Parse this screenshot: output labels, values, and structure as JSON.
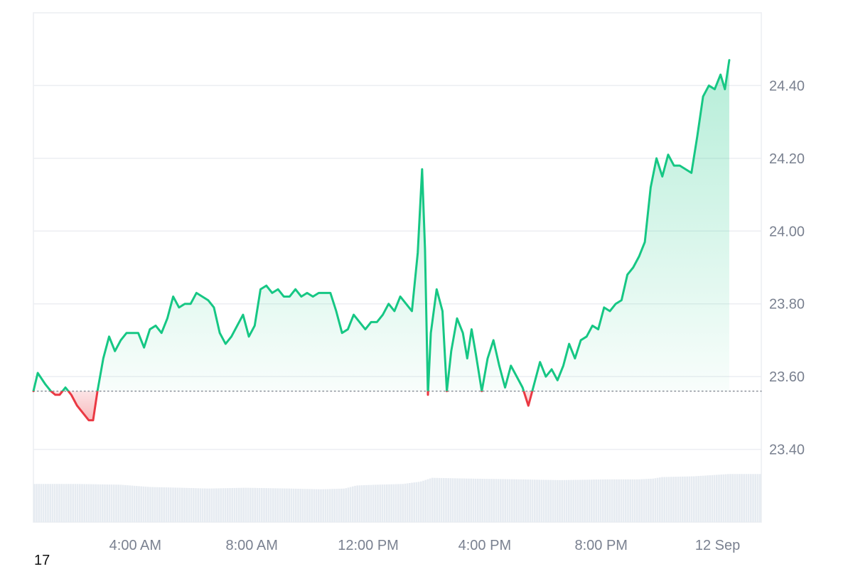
{
  "chart_data": {
    "type": "area",
    "baseline": 23.56,
    "ylim": [
      23.2,
      24.6
    ],
    "yticks": [
      {
        "value": 23.4,
        "label": "23.40"
      },
      {
        "value": 23.6,
        "label": "23.60"
      },
      {
        "value": 23.8,
        "label": "23.80"
      },
      {
        "value": 24.0,
        "label": "24.00"
      },
      {
        "value": 24.2,
        "label": "24.20"
      },
      {
        "value": 24.4,
        "label": "24.40"
      }
    ],
    "xlim": [
      0.5,
      25.5
    ],
    "xticks": [
      {
        "value": 4,
        "label": "4:00 AM"
      },
      {
        "value": 8,
        "label": "8:00 AM"
      },
      {
        "value": 12,
        "label": "12:00 PM"
      },
      {
        "value": 16,
        "label": "4:00 PM"
      },
      {
        "value": 20,
        "label": "8:00 PM"
      },
      {
        "value": 24,
        "label": "12 Sep"
      }
    ],
    "price": [
      [
        0.5,
        23.56
      ],
      [
        0.65,
        23.61
      ],
      [
        0.9,
        23.58
      ],
      [
        1.1,
        23.56
      ],
      [
        1.25,
        23.55
      ],
      [
        1.4,
        23.55
      ],
      [
        1.6,
        23.57
      ],
      [
        1.8,
        23.55
      ],
      [
        2.0,
        23.52
      ],
      [
        2.2,
        23.5
      ],
      [
        2.4,
        23.48
      ],
      [
        2.55,
        23.48
      ],
      [
        2.7,
        23.56
      ],
      [
        2.9,
        23.65
      ],
      [
        3.1,
        23.71
      ],
      [
        3.3,
        23.67
      ],
      [
        3.5,
        23.7
      ],
      [
        3.7,
        23.72
      ],
      [
        3.9,
        23.72
      ],
      [
        4.1,
        23.72
      ],
      [
        4.3,
        23.68
      ],
      [
        4.5,
        23.73
      ],
      [
        4.7,
        23.74
      ],
      [
        4.9,
        23.72
      ],
      [
        5.1,
        23.76
      ],
      [
        5.3,
        23.82
      ],
      [
        5.5,
        23.79
      ],
      [
        5.7,
        23.8
      ],
      [
        5.9,
        23.8
      ],
      [
        6.1,
        23.83
      ],
      [
        6.3,
        23.82
      ],
      [
        6.5,
        23.81
      ],
      [
        6.7,
        23.79
      ],
      [
        6.9,
        23.72
      ],
      [
        7.1,
        23.69
      ],
      [
        7.3,
        23.71
      ],
      [
        7.5,
        23.74
      ],
      [
        7.7,
        23.77
      ],
      [
        7.9,
        23.71
      ],
      [
        8.1,
        23.74
      ],
      [
        8.3,
        23.84
      ],
      [
        8.5,
        23.85
      ],
      [
        8.7,
        23.83
      ],
      [
        8.9,
        23.84
      ],
      [
        9.1,
        23.82
      ],
      [
        9.3,
        23.82
      ],
      [
        9.5,
        23.84
      ],
      [
        9.7,
        23.82
      ],
      [
        9.9,
        23.83
      ],
      [
        10.1,
        23.82
      ],
      [
        10.3,
        23.83
      ],
      [
        10.5,
        23.83
      ],
      [
        10.7,
        23.83
      ],
      [
        10.9,
        23.78
      ],
      [
        11.1,
        23.72
      ],
      [
        11.3,
        23.73
      ],
      [
        11.5,
        23.77
      ],
      [
        11.7,
        23.75
      ],
      [
        11.9,
        23.73
      ],
      [
        12.1,
        23.75
      ],
      [
        12.3,
        23.75
      ],
      [
        12.5,
        23.77
      ],
      [
        12.7,
        23.8
      ],
      [
        12.9,
        23.78
      ],
      [
        13.1,
        23.82
      ],
      [
        13.3,
        23.8
      ],
      [
        13.5,
        23.78
      ],
      [
        13.7,
        23.94
      ],
      [
        13.85,
        24.17
      ],
      [
        13.95,
        23.95
      ],
      [
        14.05,
        23.55
      ],
      [
        14.15,
        23.72
      ],
      [
        14.35,
        23.84
      ],
      [
        14.55,
        23.78
      ],
      [
        14.7,
        23.56
      ],
      [
        14.85,
        23.67
      ],
      [
        15.05,
        23.76
      ],
      [
        15.25,
        23.72
      ],
      [
        15.4,
        23.65
      ],
      [
        15.55,
        23.73
      ],
      [
        15.7,
        23.66
      ],
      [
        15.9,
        23.56
      ],
      [
        16.1,
        23.65
      ],
      [
        16.3,
        23.7
      ],
      [
        16.5,
        23.63
      ],
      [
        16.7,
        23.57
      ],
      [
        16.9,
        23.63
      ],
      [
        17.1,
        23.6
      ],
      [
        17.3,
        23.57
      ],
      [
        17.5,
        23.52
      ],
      [
        17.7,
        23.58
      ],
      [
        17.9,
        23.64
      ],
      [
        18.1,
        23.6
      ],
      [
        18.3,
        23.62
      ],
      [
        18.5,
        23.59
      ],
      [
        18.7,
        23.63
      ],
      [
        18.9,
        23.69
      ],
      [
        19.1,
        23.65
      ],
      [
        19.3,
        23.7
      ],
      [
        19.5,
        23.71
      ],
      [
        19.7,
        23.74
      ],
      [
        19.9,
        23.73
      ],
      [
        20.1,
        23.79
      ],
      [
        20.3,
        23.78
      ],
      [
        20.5,
        23.8
      ],
      [
        20.7,
        23.81
      ],
      [
        20.9,
        23.88
      ],
      [
        21.1,
        23.9
      ],
      [
        21.3,
        23.93
      ],
      [
        21.5,
        23.97
      ],
      [
        21.7,
        24.12
      ],
      [
        21.9,
        24.2
      ],
      [
        22.1,
        24.15
      ],
      [
        22.3,
        24.21
      ],
      [
        22.5,
        24.18
      ],
      [
        22.7,
        24.18
      ],
      [
        22.9,
        24.17
      ],
      [
        23.1,
        24.16
      ],
      [
        23.3,
        24.26
      ],
      [
        23.5,
        24.37
      ],
      [
        23.7,
        24.4
      ],
      [
        23.9,
        24.39
      ],
      [
        24.1,
        24.43
      ],
      [
        24.25,
        24.39
      ],
      [
        24.4,
        24.47
      ]
    ],
    "volume_axis_max": 100,
    "volume": [
      [
        0.5,
        25
      ],
      [
        2.0,
        25
      ],
      [
        3.5,
        24.5
      ],
      [
        4.5,
        23
      ],
      [
        5.6,
        22.5
      ],
      [
        6.5,
        22
      ],
      [
        7.8,
        22.5
      ],
      [
        9.3,
        22
      ],
      [
        10.4,
        21.5
      ],
      [
        11.2,
        22
      ],
      [
        11.6,
        24
      ],
      [
        12.3,
        24.5
      ],
      [
        13.2,
        25
      ],
      [
        13.8,
        26.5
      ],
      [
        14.2,
        29
      ],
      [
        15.5,
        28.5
      ],
      [
        17.2,
        28
      ],
      [
        18.6,
        27.5
      ],
      [
        20.2,
        28
      ],
      [
        21.3,
        28
      ],
      [
        21.8,
        28.5
      ],
      [
        22.1,
        29.5
      ],
      [
        23.2,
        30
      ],
      [
        24.4,
        31.5
      ],
      [
        25.5,
        31.5
      ]
    ]
  },
  "footer": {
    "corner_label": "17"
  },
  "colors": {
    "up_line": "#16c784",
    "down_line": "#ea3943",
    "up_fill": "#16c784",
    "down_fill": "#ea3943",
    "grid": "#eceef2",
    "axis_text": "#7a8190",
    "baseline": "#8a8f99",
    "volume": "#e6ebf1"
  }
}
